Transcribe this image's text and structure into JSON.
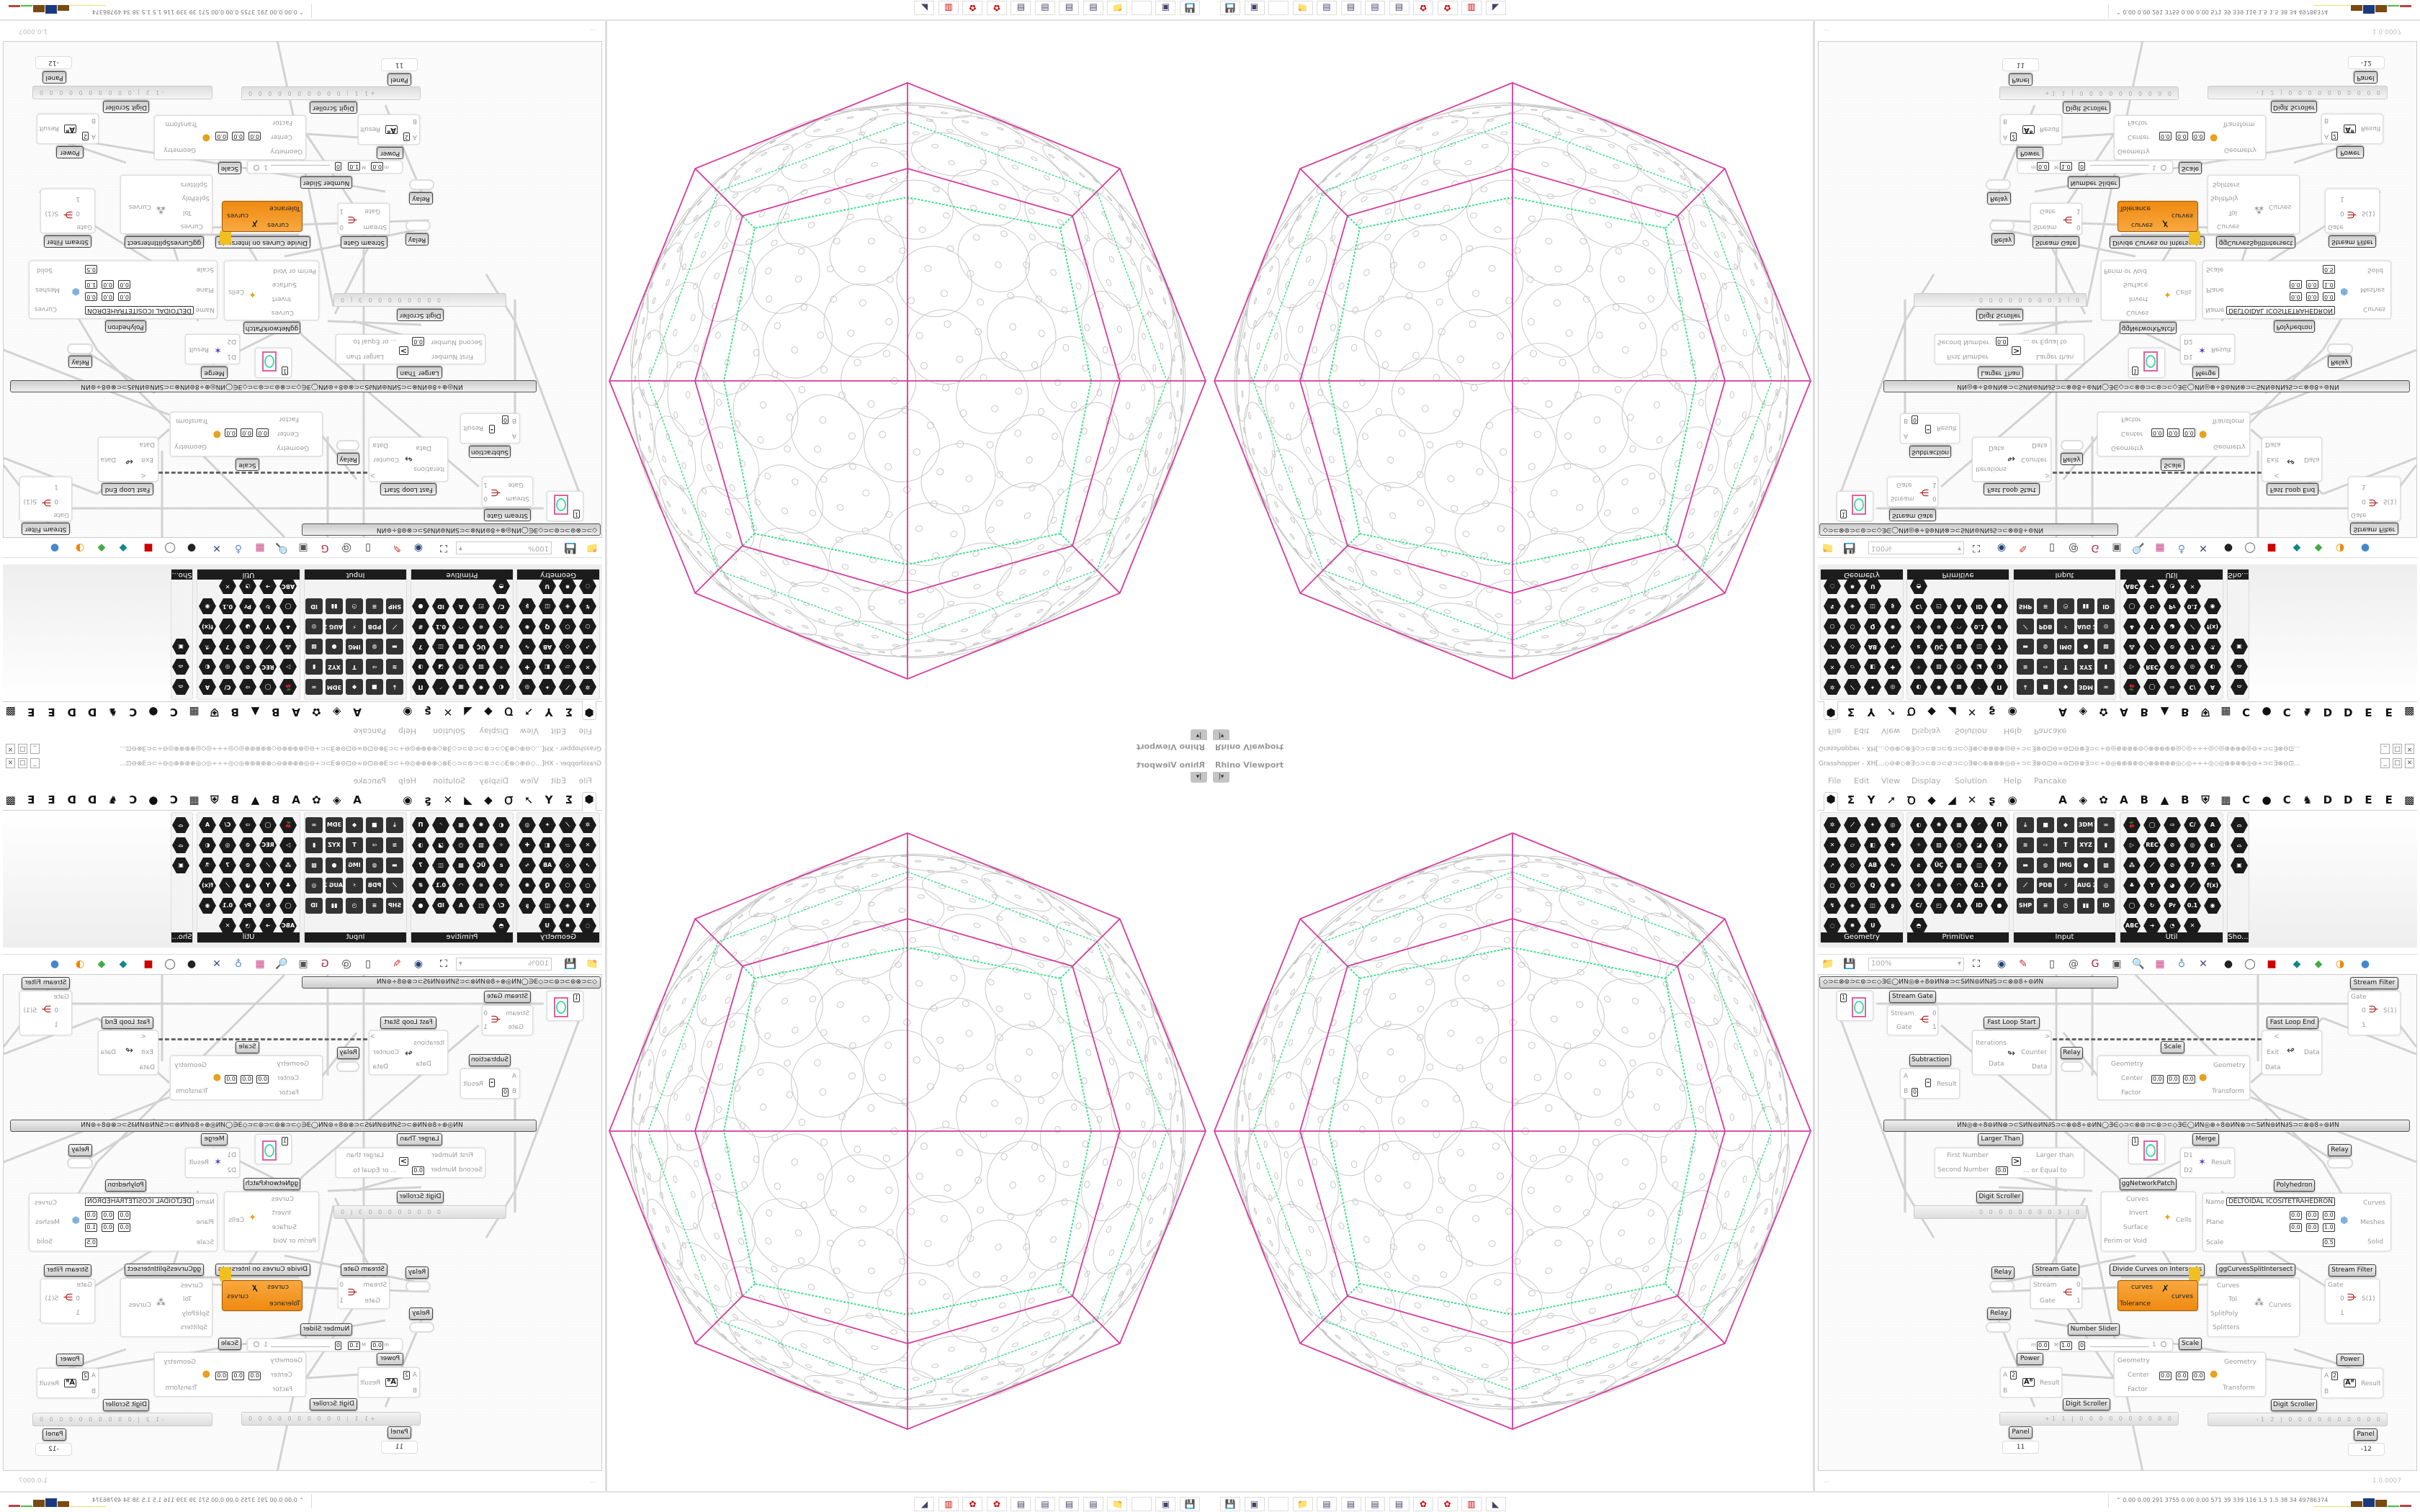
{
  "viewport": {
    "label": "Rhino Viewport",
    "dropdown_icon": "caret-down-icon"
  },
  "taskbar": {
    "icons": [
      "save-v2-icon",
      "server-icon",
      "blank-icon",
      "folder-icon",
      "notepad-icon",
      "notepad-icon",
      "notepad-icon",
      "notepad-icon",
      "red-app-icon",
      "red-app-icon",
      "red-trash-icon",
      "black-cat-icon"
    ]
  },
  "grasshopper": {
    "title": "Grasshopper - XH[...◇⊖⊕◇⊗∃◇⊃⊂⊚⊃⊂⊘⊃⊂◇∃⊗◇⊕⊕⊕⊕◎⊖÷⊃⊂∃⊗⊖⊡⊖∞⊖⊡⊖⊗∃⊃⊂÷⊖◎⊕⊕⊕⊕⊖◇⊗⊕⊕⊕⊕◎◇◎÷÷÷◎◇◎⊕⊕⊕⊕◎⊖÷⊃⊂∃⊗⊖⊡...",
    "menu": [
      "File",
      "Edit",
      "View",
      "Display",
      "Solution",
      "Help",
      "Pancake"
    ],
    "tabs": [
      "⬢",
      "Σ",
      "Y",
      "➚",
      "Ꝺ",
      "◆",
      "◢",
      "✕",
      "ʂ",
      "◉",
      "A",
      "◈",
      "✿",
      "A",
      "B",
      "▲",
      "B",
      "⛨",
      "▦",
      "C",
      "●",
      "C",
      "♞",
      "D",
      "D",
      "E",
      "E",
      "▩"
    ],
    "ribbon": {
      "panels": [
        {
          "label": "Geometry",
          "icons": [
            "✲",
            "⟋",
            "✦",
            "◎",
            "✕",
            "▱",
            "◧",
            "✚",
            "➚",
            "◇",
            "AB",
            "∿",
            "○",
            "⬡",
            "Ꝗ",
            "✺",
            "↯",
            "◈",
            "◫",
            "ʂ",
            "◌",
            "✹",
            "Ս"
          ]
        },
        {
          "label": "Primitive",
          "icons": [
            "◐",
            "✺",
            "▦",
            "◜",
            "Π",
            "✧",
            "▨",
            "◷",
            "◪",
            "◑",
            "ƨ",
            "ÜÇ",
            "▩",
            "◫",
            "7",
            "✛",
            "✵",
            "◠",
            "0.1",
            "#",
            "C/",
            "◰",
            "A",
            "ID",
            "●",
            "◓"
          ]
        },
        {
          "label": "Input",
          "icons": [
            "⤓",
            "■",
            "◆",
            "3DM",
            "∞",
            "≋",
            "⇨",
            "T",
            "XYZ",
            "▮",
            "▬",
            "◍",
            "IMG",
            "●",
            "▩",
            "⟋",
            "PDB",
            "⚡",
            "AUG 20",
            "◎",
            "SHP",
            "≡",
            "◷",
            "▮▮",
            "ID"
          ]
        },
        {
          "label": "Util",
          "icons": [
            "🍒",
            "◯",
            "⇨",
            "C/",
            "A",
            "▷",
            "REC",
            "⊘",
            "◎",
            "◐",
            "⁂",
            "⟋",
            "⊘",
            "7",
            "⚗",
            "♣",
            "Y",
            "◕",
            "⟋",
            "f(x)",
            "◯",
            "↻",
            "Pr",
            "0.1",
            "◉",
            "ABC",
            "➜",
            "◔",
            "✕"
          ]
        },
        {
          "label": "Sho...",
          "icons": [
            "⌓",
            "⌓",
            "▣"
          ]
        }
      ]
    },
    "canvas_toolbar": {
      "zoom": "100%",
      "icons": [
        "folder-icon",
        "save-icon",
        "zoom-extents-icon",
        "eye-icon",
        "sketch-icon",
        "bake-icon",
        "at-icon",
        "gha-icon",
        "preview-icon",
        "search-icon",
        "box-icon",
        "bulb-icon",
        "cross-icon",
        "ball-icon",
        "ring-icon",
        "red-cube-icon",
        "teal-icon",
        "green-icon",
        "orange-sphere-icon",
        "blue-sphere-icon"
      ]
    },
    "groups": [
      "◇⊃⊂⊗⊚⊃⊂⊚⊃⊂◇∃∈◯ИN◎⊕÷8⊚ИN⊗⊃⊂SИN⊚ИN∂S⊃⊂⊗⊚8÷⊚ИN",
      "ИN◎⊕÷8⊚ИN⊗⊃⊂SИN⊚ИN∂S⊃⊂⊗⊚8÷⊚ИN◯∃∈◇⊃⊂⊗⊚⊃⊂⊚⊃⊂◇∃∈◯ИN◎⊕÷8⊚ИN⊗⊃⊂SИN⊚ИN∂S⊃⊂⊗⊚8÷⊚ИN"
    ],
    "components": {
      "circle_param_1": {
        "value": "1"
      },
      "stream_gate_1": {
        "label": "Stream Gate",
        "in": [
          "Stream",
          "Gate"
        ],
        "out": [
          "0",
          "1"
        ]
      },
      "stream_filter_1": {
        "label": "Stream Filter",
        "in": [
          "Gate",
          "0",
          "1"
        ],
        "out": "S(1)"
      },
      "fast_loop_start": {
        "label": "Fast Loop Start",
        "in": [
          "Iterations",
          "Data"
        ],
        "out": [
          ">",
          "Counter",
          "Data"
        ]
      },
      "relay_1": {
        "label": "Relay"
      },
      "scale_1": {
        "label": "Scale",
        "in": [
          "Geometry",
          "Center",
          "Factor"
        ],
        "out": [
          "Geometry",
          "Transform"
        ],
        "x": "0.0",
        "y": "0.0",
        "z": "0.0"
      },
      "fast_loop_end": {
        "label": "Fast Loop End",
        "in": [
          "<",
          "Exit",
          "Data"
        ],
        "out": "Data"
      },
      "subtraction": {
        "label": "Subtraction",
        "in": [
          "A",
          "B"
        ],
        "out": "Result",
        "b": "0"
      },
      "larger_than": {
        "label": "Larger Than",
        "in": [
          "First Number",
          "Second Number"
        ],
        "out": [
          "Larger than",
          "... or Equal to"
        ],
        "second": "0.0"
      },
      "circle_param_2": {
        "value": "1"
      },
      "merge": {
        "label": "Merge",
        "in": [
          "D1",
          "D2"
        ],
        "out": "Result"
      },
      "relay_2": {
        "label": "Relay"
      },
      "network_patch": {
        "label": "ggNetworkPatch",
        "in": [
          "Curves",
          "Invert",
          "Surface",
          "Perim or Void"
        ],
        "out": "Cells"
      },
      "polyhedron": {
        "label": "Polyhedron",
        "name_label": "Name",
        "name": "DELTOIDAL ICOSITETRAHEDRON",
        "in": [
          "Plane",
          "Scale"
        ],
        "out": [
          "Curves",
          "Meshes",
          "Solid"
        ],
        "o": [
          "0.0",
          "0.0",
          "0.0"
        ],
        "z": [
          "0.0",
          "0.0",
          "1.0"
        ],
        "scale": "0.5"
      },
      "digit_scroller_1": {
        "label": "Digit Scroller",
        "digits": "· 0 0 0 0 0 0 0 0 3 | 0"
      },
      "relay_3": {
        "label": "Relay"
      },
      "relay_4": {
        "label": "Relay"
      },
      "stream_gate_2": {
        "label": "Stream Gate",
        "in": [
          "Stream",
          "Gate"
        ],
        "out": [
          "0",
          "1"
        ]
      },
      "divide_curves": {
        "label": "Divide Curves on Intersects",
        "in": [
          "curves",
          "Tolerance"
        ],
        "out": "curves"
      },
      "curves_split": {
        "label": "ggCurvesSplitIntersect",
        "in": [
          "Curves",
          "Tol",
          "SplitPoly",
          "Splitters"
        ],
        "out": "Curves"
      },
      "stream_filter_2": {
        "label": "Stream Filter",
        "in": [
          "Gate",
          "0",
          "1"
        ],
        "out": "S(1)"
      },
      "number_slider": {
        "label": "Number Slider",
        "m": "0.0",
        "M": "1.0",
        "d": "0",
        "value": "1",
        "fraction": 1.0
      },
      "scale_2": {
        "label": "Scale",
        "in": [
          "Geometry",
          "Center",
          "Factor"
        ],
        "out": [
          "Geometry",
          "Transform"
        ],
        "x": "0.0",
        "y": "0.0",
        "z": "0.0"
      },
      "power_1": {
        "label": "Power",
        "in": [
          "A",
          "B"
        ],
        "out": "Result",
        "a": "2"
      },
      "power_2": {
        "label": "Power",
        "in": [
          "A",
          "B"
        ],
        "out": "Result",
        "a": "2"
      },
      "digit_scroller_2": {
        "label": "Digit Scroller",
        "digits": "+1 1 | 0 0 0 0 0 0 0 0 0 0"
      },
      "digit_scroller_3": {
        "label": "Digit Scroller",
        "digits": "-1 2 | 0 0 0 0 0 0 0 0 0 0"
      },
      "panel_1": {
        "label": "Panel",
        "value": "11"
      },
      "panel_2": {
        "label": "Panel",
        "value": "-12"
      }
    },
    "status": {
      "left": "...",
      "version": "1.0.0007"
    },
    "perf": {
      "values": "0.00 0.00 291 3755 0.00 0.00 571  39  339  116  1.5  1.5  38  34  49786374",
      "bar_colors": [
        "#e8e060",
        "#e8e060",
        "#e8e060",
        "#7a4a10",
        "#1a3a80",
        "#7a4a10",
        "#40c040",
        "#c04040"
      ]
    }
  },
  "colors": {
    "polyhedron_edges": "#d63c9c",
    "packing_circles": "#c8c8c8",
    "packing_gaps": "#40e090",
    "component_orange": "#f09020"
  }
}
